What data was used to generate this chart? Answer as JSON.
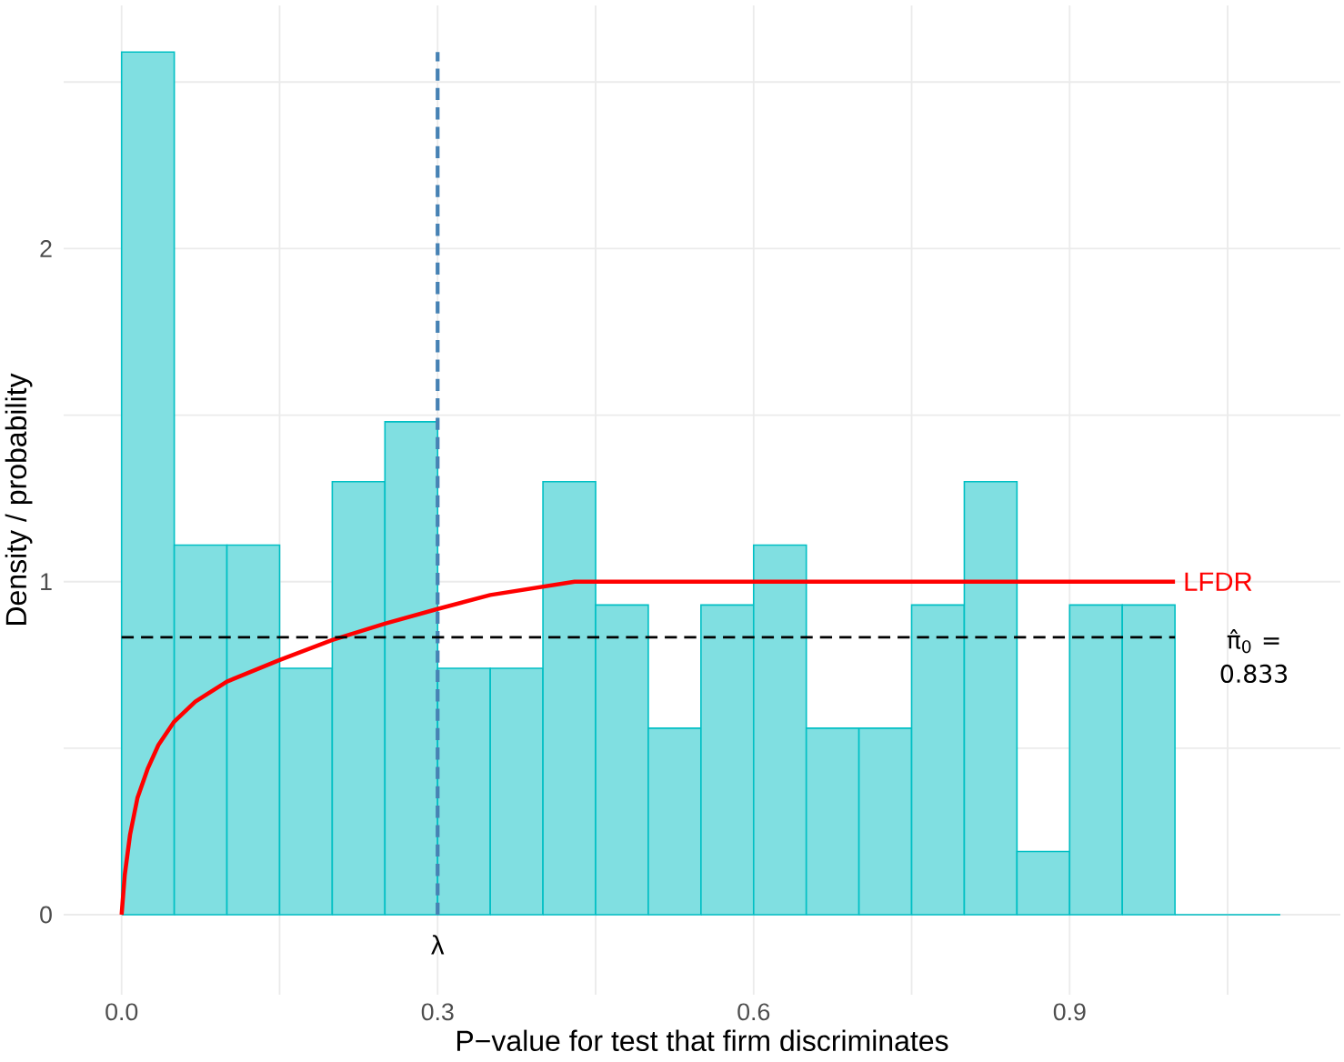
{
  "chart_data": {
    "type": "histogram",
    "xlabel": "P−value for test that firm discriminates",
    "ylabel": "Density / probability",
    "bins": [
      0,
      0.05,
      0.1,
      0.15,
      0.2,
      0.25,
      0.3,
      0.35,
      0.4,
      0.45,
      0.5,
      0.55,
      0.6,
      0.65,
      0.7,
      0.75,
      0.8,
      0.85,
      0.9,
      0.95,
      1.0,
      1.05,
      1.1
    ],
    "values": [
      2.59,
      1.11,
      1.11,
      0.74,
      1.3,
      1.48,
      0.74,
      0.74,
      1.3,
      0.93,
      0.56,
      0.93,
      1.11,
      0.56,
      0.56,
      0.93,
      1.3,
      0.19,
      0.93,
      0.93,
      0,
      0
    ],
    "color": "#00bfc4",
    "series": [
      {
        "type": "line",
        "name": "LFDR",
        "color": "#ff0000",
        "x": [
          0,
          0.003,
          0.008,
          0.015,
          0.025,
          0.035,
          0.05,
          0.07,
          0.1,
          0.15,
          0.2,
          0.25,
          0.3,
          0.35,
          0.43,
          1.0
        ],
        "values": [
          0,
          0.12,
          0.24,
          0.35,
          0.44,
          0.51,
          0.58,
          0.64,
          0.7,
          0.765,
          0.825,
          0.874,
          0.918,
          0.96,
          1.0,
          1.0
        ]
      }
    ],
    "ref_lines": [
      {
        "axis": "x",
        "value": 0.3,
        "label": "λ",
        "color": "#4682b4",
        "line_style": "dashed"
      },
      {
        "axis": "y",
        "value": 0.833,
        "label": "π̂$_{0}$ = 0.833",
        "color": "#000000",
        "line_style": "dashed"
      }
    ],
    "xlim": [
      -0.055,
      1.157
    ],
    "ylim": [
      -0.24,
      2.73
    ],
    "xticks": [
      {
        "value": 0,
        "label": "0.0"
      },
      {
        "value": 0.15,
        "label": null
      },
      0.3,
      {
        "value": 0.45,
        "label": null
      },
      0.6,
      {
        "value": 0.75,
        "label": null
      },
      0.9,
      {
        "value": 1.05,
        "label": null
      }
    ],
    "yticks": [
      0,
      {
        "value": 0.5,
        "label": null
      },
      1,
      {
        "value": 1.5,
        "label": null
      },
      2,
      {
        "value": 2.5,
        "label": null
      }
    ],
    "grid": true
  }
}
